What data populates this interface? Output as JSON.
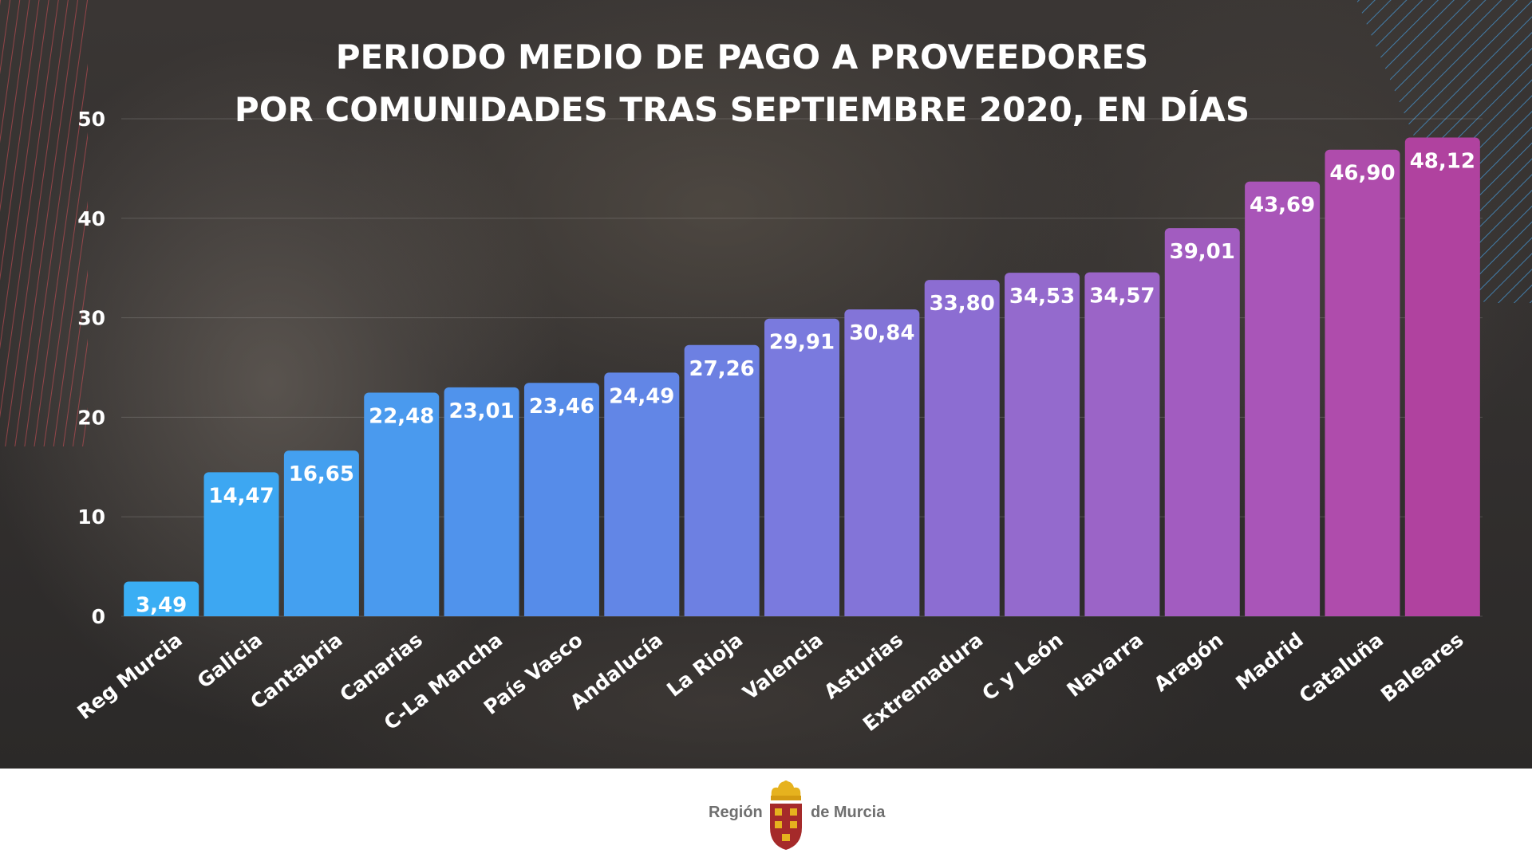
{
  "chart_data": {
    "type": "bar",
    "title": "PERIODO MEDIO DE PAGO A PROVEEDORES",
    "subtitle": "POR COMUNIDADES TRAS SEPTIEMBRE 2020, EN DÍAS",
    "xlabel": "",
    "ylabel": "",
    "ylim": [
      0,
      50
    ],
    "yticks": [
      "0",
      "10",
      "20",
      "30",
      "40",
      "50"
    ],
    "grid": true,
    "categories": [
      "Reg Murcia",
      "Galicia",
      "Cantabria",
      "Canarias",
      "C-La Mancha",
      "País Vasco",
      "Andalucía",
      "La Rioja",
      "Valencia",
      "Asturias",
      "Extremadura",
      "C y León",
      "Navarra",
      "Aragón",
      "Madrid",
      "Cataluña",
      "Baleares"
    ],
    "values": [
      3.49,
      14.47,
      16.65,
      22.48,
      23.01,
      23.46,
      24.49,
      27.26,
      29.91,
      30.84,
      33.8,
      34.53,
      34.57,
      39.01,
      43.69,
      46.9,
      48.12
    ],
    "value_labels": [
      "3,49",
      "14,47",
      "16,65",
      "22,48",
      "23,01",
      "23,46",
      "24,49",
      "27,26",
      "29,91",
      "30,84",
      "33,80",
      "34,53",
      "34,57",
      "39,01",
      "43,69",
      "46,90",
      "48,12"
    ],
    "colors": [
      "#3aaef4",
      "#3da7f2",
      "#44a0f0",
      "#4a9aee",
      "#5093ec",
      "#568ce9",
      "#6286e6",
      "#6d80e2",
      "#7a7ade",
      "#8374d8",
      "#8c6dd2",
      "#946acd",
      "#9b64c7",
      "#a25cc0",
      "#a955b8",
      "#af4cac",
      "#b0429f"
    ]
  },
  "footer": {
    "logo_left": "Región",
    "logo_right": "de Murcia"
  }
}
